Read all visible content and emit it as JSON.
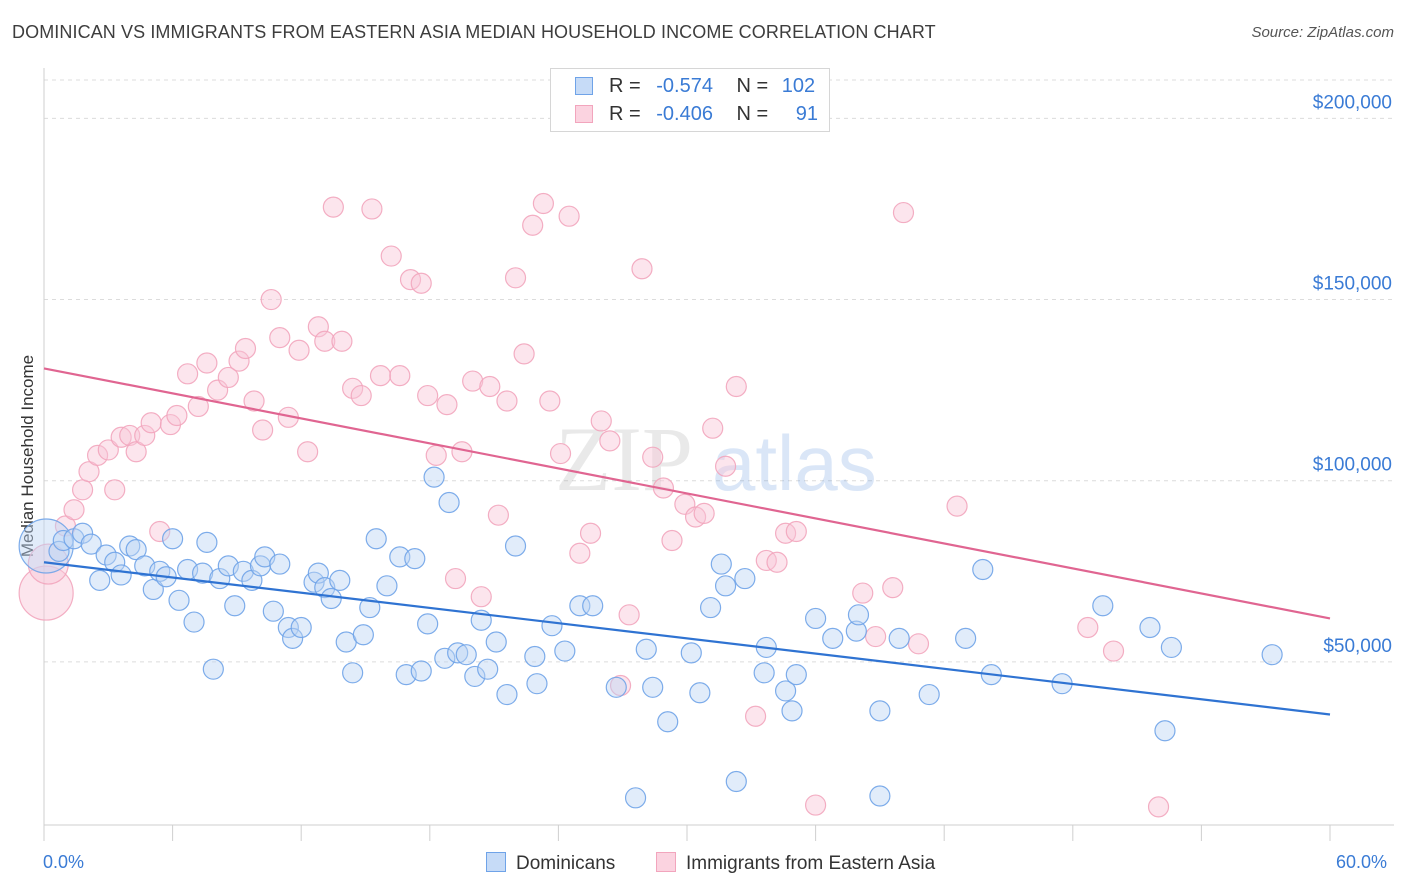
{
  "header": {
    "title": "DOMINICAN VS IMMIGRANTS FROM EASTERN ASIA MEDIAN HOUSEHOLD INCOME CORRELATION CHART",
    "source": "Source: ZipAtlas.com"
  },
  "watermark": {
    "zip": "ZIP",
    "atlas": "atlas"
  },
  "legend_top": {
    "rows": [
      {
        "r_label": "R =",
        "r_value": "-0.574",
        "n_label": "N =",
        "n_value": "102",
        "color": "#6fa3e8"
      },
      {
        "r_label": "R =",
        "r_value": "-0.406",
        "n_label": "N =",
        "n_value": "91",
        "color": "#f2a5bd"
      }
    ]
  },
  "legend_bottom": {
    "items": [
      {
        "label": "Dominicans",
        "color": "#6fa3e8"
      },
      {
        "label": "Immigrants from Eastern Asia",
        "color": "#f2a5bd"
      }
    ]
  },
  "x_axis": {
    "min_label": "0.0%",
    "max_label": "60.0%"
  },
  "chart_data": {
    "type": "scatter",
    "title": "DOMINICAN VS IMMIGRANTS FROM EASTERN ASIA MEDIAN HOUSEHOLD INCOME CORRELATION CHART",
    "xlabel": "",
    "ylabel": "Median Household Income",
    "xlim": [
      0,
      60
    ],
    "ylim": [
      5000,
      215000
    ],
    "y_ticks": [
      50000,
      100000,
      150000,
      200000
    ],
    "y_tick_labels": [
      "$50,000",
      "$100,000",
      "$150,000",
      "$200,000"
    ],
    "grid": "horizontal dashed",
    "series": [
      {
        "name": "Dominicans",
        "color": "#6fa3e8",
        "line_color": "#2f73d2",
        "trend": [
          [
            0,
            77500
          ],
          [
            60,
            35500
          ]
        ],
        "points": [
          [
            0.1,
            82000,
            "L"
          ],
          [
            0.7,
            80500
          ],
          [
            0.9,
            83500
          ],
          [
            1.4,
            84000
          ],
          [
            1.8,
            85500
          ],
          [
            2.2,
            82500
          ],
          [
            2.6,
            72500
          ],
          [
            2.9,
            79500
          ],
          [
            3.3,
            77500
          ],
          [
            3.6,
            74000
          ],
          [
            4.0,
            82000
          ],
          [
            4.3,
            81000
          ],
          [
            4.7,
            76500
          ],
          [
            5.1,
            70000
          ],
          [
            5.4,
            75000
          ],
          [
            5.7,
            73500
          ],
          [
            6.0,
            84000
          ],
          [
            6.3,
            67000
          ],
          [
            6.7,
            75500
          ],
          [
            7.0,
            61000
          ],
          [
            7.4,
            74500
          ],
          [
            7.6,
            83000
          ],
          [
            7.9,
            48000
          ],
          [
            8.2,
            73000
          ],
          [
            8.6,
            76500
          ],
          [
            8.9,
            65500
          ],
          [
            9.3,
            75000
          ],
          [
            9.7,
            72500
          ],
          [
            10.1,
            76500
          ],
          [
            10.3,
            79000
          ],
          [
            10.7,
            64000
          ],
          [
            11.0,
            77000
          ],
          [
            11.4,
            59500
          ],
          [
            11.6,
            56500
          ],
          [
            12.0,
            59500
          ],
          [
            12.6,
            72000
          ],
          [
            12.8,
            74500
          ],
          [
            13.1,
            70500
          ],
          [
            13.4,
            67500
          ],
          [
            13.8,
            72500
          ],
          [
            14.1,
            55500
          ],
          [
            14.4,
            47000
          ],
          [
            14.9,
            57500
          ],
          [
            15.2,
            65000
          ],
          [
            15.5,
            84000
          ],
          [
            16.0,
            71000
          ],
          [
            16.6,
            79000
          ],
          [
            16.9,
            46500
          ],
          [
            17.3,
            78500
          ],
          [
            17.6,
            47500
          ],
          [
            17.9,
            60500
          ],
          [
            18.2,
            101000
          ],
          [
            18.7,
            51000
          ],
          [
            18.9,
            94000
          ],
          [
            19.3,
            52500
          ],
          [
            19.7,
            52000
          ],
          [
            20.1,
            46000
          ],
          [
            20.4,
            61500
          ],
          [
            20.7,
            48000
          ],
          [
            21.1,
            55500
          ],
          [
            21.6,
            41000
          ],
          [
            22.0,
            82000
          ],
          [
            22.9,
            51500
          ],
          [
            23.7,
            60000
          ],
          [
            24.3,
            53000
          ],
          [
            25.0,
            65500
          ],
          [
            25.6,
            65500
          ],
          [
            26.7,
            43000
          ],
          [
            27.6,
            12500
          ],
          [
            28.1,
            53500
          ],
          [
            28.4,
            43000
          ],
          [
            29.1,
            33500
          ],
          [
            30.2,
            52500
          ],
          [
            30.6,
            41500
          ],
          [
            31.1,
            65000
          ],
          [
            31.6,
            77000
          ],
          [
            31.8,
            71000
          ],
          [
            32.3,
            17000
          ],
          [
            32.7,
            73000
          ],
          [
            33.6,
            47000
          ],
          [
            33.7,
            54000
          ],
          [
            34.6,
            42000
          ],
          [
            34.9,
            36500
          ],
          [
            35.1,
            46500
          ],
          [
            36.8,
            56500
          ],
          [
            37.9,
            58500
          ],
          [
            38.0,
            63000
          ],
          [
            39.0,
            36500
          ],
          [
            39.0,
            13000
          ],
          [
            39.9,
            56500
          ],
          [
            41.3,
            41000
          ],
          [
            43.0,
            56500
          ],
          [
            43.8,
            75500
          ],
          [
            44.2,
            46500
          ],
          [
            47.5,
            44000
          ],
          [
            49.4,
            65500
          ],
          [
            51.6,
            59500
          ],
          [
            52.3,
            31000
          ],
          [
            52.6,
            54000
          ],
          [
            57.3,
            52000
          ],
          [
            36.0,
            62000
          ],
          [
            23.0,
            44000
          ]
        ]
      },
      {
        "name": "Immigrants from Eastern Asia",
        "color": "#f2a5bd",
        "line_color": "#e06591",
        "trend": [
          [
            0,
            131000
          ],
          [
            60,
            62000
          ]
        ],
        "points": [
          [
            0.1,
            69000,
            "L"
          ],
          [
            0.2,
            77000,
            "M"
          ],
          [
            1.0,
            87500
          ],
          [
            1.4,
            92000
          ],
          [
            1.8,
            97500
          ],
          [
            2.1,
            102500
          ],
          [
            2.5,
            107000
          ],
          [
            3.0,
            108500
          ],
          [
            3.3,
            97500
          ],
          [
            3.6,
            112000
          ],
          [
            4.0,
            112500
          ],
          [
            4.3,
            108000
          ],
          [
            4.7,
            112500
          ],
          [
            5.0,
            116000
          ],
          [
            5.4,
            86000
          ],
          [
            5.9,
            115500
          ],
          [
            6.2,
            118000
          ],
          [
            6.7,
            129500
          ],
          [
            7.2,
            120500
          ],
          [
            7.6,
            132500
          ],
          [
            8.1,
            125000
          ],
          [
            8.6,
            128500
          ],
          [
            9.1,
            133000
          ],
          [
            9.4,
            136500
          ],
          [
            9.8,
            122000
          ],
          [
            10.2,
            114000
          ],
          [
            10.6,
            150000
          ],
          [
            11.0,
            139500
          ],
          [
            11.4,
            117500
          ],
          [
            11.9,
            136000
          ],
          [
            12.3,
            108000
          ],
          [
            12.8,
            142500
          ],
          [
            13.1,
            138500
          ],
          [
            13.5,
            175500
          ],
          [
            13.9,
            138500
          ],
          [
            14.4,
            125500
          ],
          [
            14.8,
            123500
          ],
          [
            15.3,
            175000
          ],
          [
            15.7,
            129000
          ],
          [
            16.2,
            162000
          ],
          [
            16.6,
            129000
          ],
          [
            17.1,
            155500
          ],
          [
            17.6,
            154500
          ],
          [
            17.9,
            123500
          ],
          [
            18.3,
            107000
          ],
          [
            18.8,
            121000
          ],
          [
            19.2,
            73000
          ],
          [
            19.5,
            108000
          ],
          [
            20.0,
            127500
          ],
          [
            20.4,
            68000
          ],
          [
            20.8,
            126000
          ],
          [
            21.2,
            90500
          ],
          [
            21.6,
            122000
          ],
          [
            22.0,
            156000
          ],
          [
            22.4,
            135000
          ],
          [
            22.8,
            170500
          ],
          [
            23.3,
            176500
          ],
          [
            23.6,
            122000
          ],
          [
            24.1,
            107500
          ],
          [
            24.5,
            173000
          ],
          [
            25.0,
            80000
          ],
          [
            25.5,
            85500
          ],
          [
            26.0,
            116500
          ],
          [
            26.4,
            111000
          ],
          [
            26.9,
            43500
          ],
          [
            27.3,
            63000
          ],
          [
            27.9,
            158500
          ],
          [
            28.4,
            106500
          ],
          [
            28.9,
            98000
          ],
          [
            29.3,
            83500
          ],
          [
            29.9,
            93500
          ],
          [
            30.4,
            90000
          ],
          [
            30.8,
            91000
          ],
          [
            31.2,
            114500
          ],
          [
            31.8,
            104000
          ],
          [
            32.3,
            126000
          ],
          [
            33.2,
            35000
          ],
          [
            33.7,
            78000
          ],
          [
            34.2,
            77500
          ],
          [
            34.6,
            85500
          ],
          [
            35.1,
            86000
          ],
          [
            36.0,
            10500
          ],
          [
            38.2,
            69000
          ],
          [
            38.8,
            57000
          ],
          [
            39.6,
            70500
          ],
          [
            40.1,
            174000
          ],
          [
            40.8,
            55000
          ],
          [
            42.6,
            93000
          ],
          [
            48.7,
            59500
          ],
          [
            49.9,
            53000
          ],
          [
            52.0,
            10000
          ]
        ]
      }
    ]
  }
}
